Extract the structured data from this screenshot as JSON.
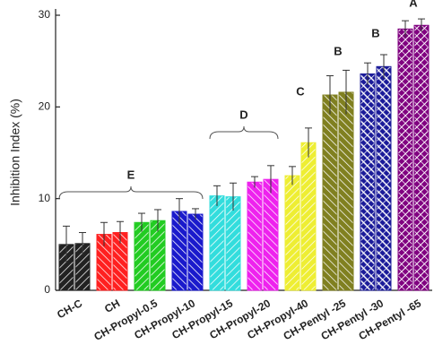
{
  "chart_data": {
    "type": "bar",
    "ylabel": "Inhibition Index (%)",
    "categories": [
      "CH-C",
      "CH",
      "CH-Propyl-0.5",
      "CH-Propyl-10",
      "CH-Propyl-15",
      "CH-Propyl-20",
      "CH-Propyl-40",
      "CH-Pentyl -25",
      "CH-Pentyl -30",
      "CH-Pentyl -65"
    ],
    "colors": [
      "#222222",
      "#ff2020",
      "#22cc22",
      "#1a1acc",
      "#33dddd",
      "#ee22ee",
      "#eeee33",
      "#808020",
      "#1a1a99",
      "#800080"
    ],
    "series": [
      {
        "values": [
          5.0,
          6.1,
          7.4,
          8.6,
          10.3,
          11.8,
          12.5,
          21.3,
          23.6,
          28.5
        ],
        "errors": [
          2.0,
          1.3,
          1.0,
          1.4,
          1.1,
          0.6,
          1.0,
          2.1,
          1.2,
          0.9
        ]
      },
      {
        "values": [
          5.1,
          6.3,
          7.6,
          8.3,
          10.2,
          12.1,
          16.1,
          21.6,
          24.4,
          28.9
        ],
        "errors": [
          1.2,
          1.2,
          1.2,
          0.6,
          1.5,
          1.5,
          1.6,
          2.4,
          1.3,
          0.7
        ]
      }
    ],
    "annotations": [
      {
        "text": "E"
      },
      {
        "text": "D"
      },
      {
        "text": "C"
      },
      {
        "text": "B"
      },
      {
        "text": "B"
      },
      {
        "text": "A"
      }
    ],
    "ylim": [
      0,
      30
    ],
    "yticks": [
      0,
      10,
      20,
      30
    ]
  }
}
